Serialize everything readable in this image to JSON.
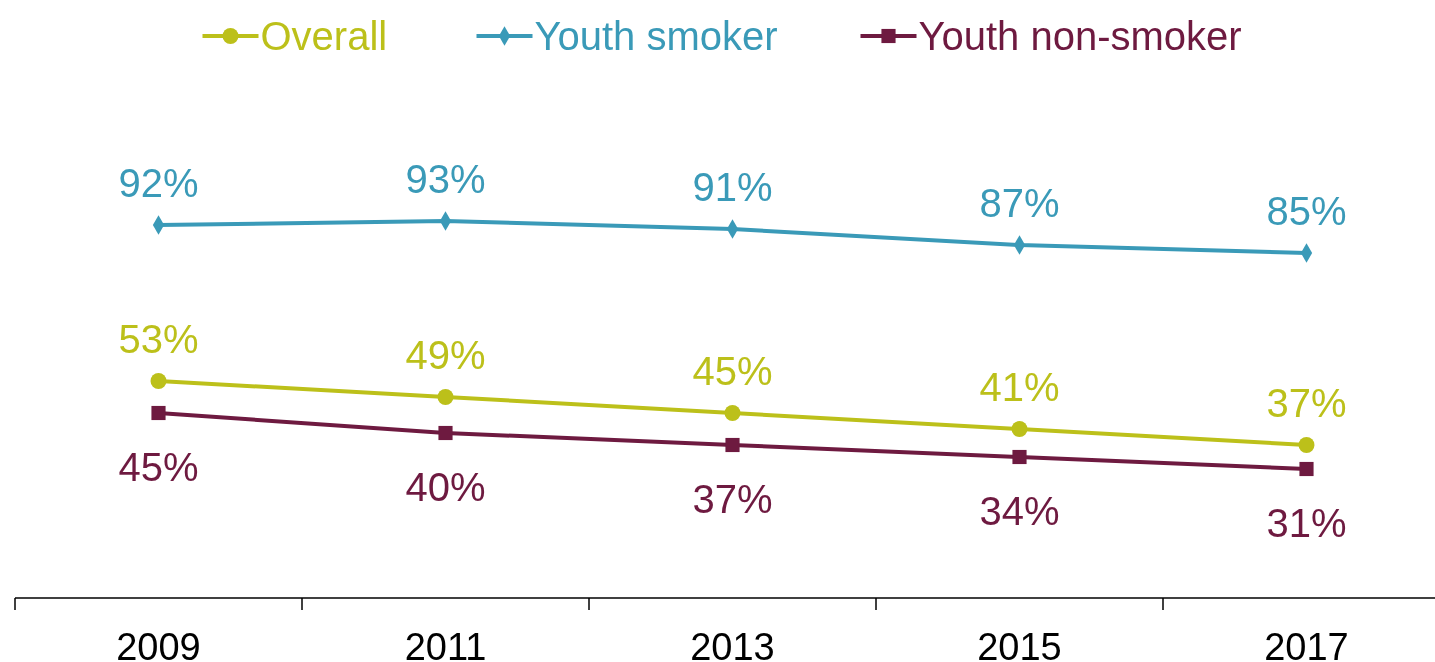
{
  "chart_data": {
    "type": "line",
    "categories": [
      "2009",
      "2011",
      "2013",
      "2015",
      "2017"
    ],
    "series": [
      {
        "name": "Overall",
        "color": "#bcc01a",
        "marker": "circle",
        "values": [
          53,
          49,
          45,
          41,
          37
        ],
        "value_labels": [
          "53%",
          "49%",
          "45%",
          "41%",
          "37%"
        ]
      },
      {
        "name": "Youth smoker",
        "color": "#3a9ab8",
        "marker": "diamond",
        "values": [
          92,
          93,
          91,
          87,
          85
        ],
        "value_labels": [
          "92%",
          "93%",
          "91%",
          "87%",
          "85%"
        ]
      },
      {
        "name": "Youth non-smoker",
        "color": "#6e1a40",
        "marker": "square",
        "values": [
          45,
          40,
          37,
          34,
          31
        ],
        "value_labels": [
          "45%",
          "40%",
          "37%",
          "34%",
          "31%"
        ]
      }
    ],
    "legend": "top"
  }
}
